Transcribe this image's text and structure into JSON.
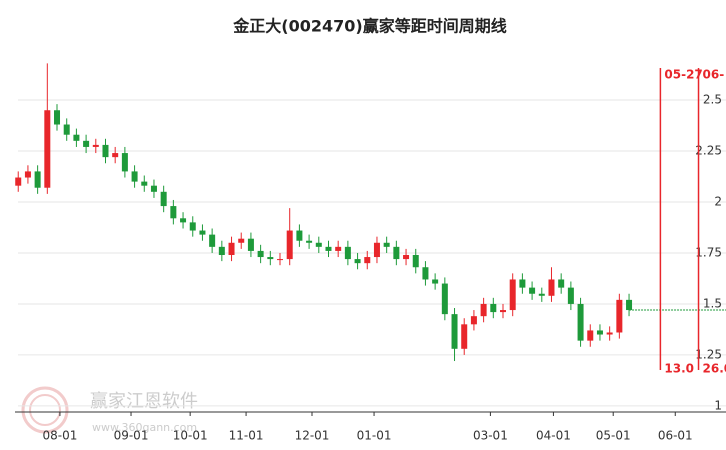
{
  "chart_data": {
    "type": "candlestick",
    "title": "金正大(002470)赢家等距时间周期线",
    "x": [
      0,
      3,
      6,
      9,
      12,
      15,
      18,
      21,
      24,
      27,
      30,
      33,
      36,
      39,
      42,
      45,
      48,
      51,
      54,
      57,
      60,
      63,
      66,
      69,
      72,
      75,
      78,
      81,
      84,
      87,
      90,
      93,
      96,
      99,
      102,
      105,
      108,
      111,
      114,
      117,
      120,
      123,
      126,
      129,
      132,
      135,
      138,
      141,
      144,
      147,
      150,
      153,
      156,
      159,
      162,
      165,
      168,
      171,
      174,
      177,
      180,
      183,
      186,
      189
    ],
    "open": [
      2.08,
      2.12,
      2.15,
      2.07,
      2.45,
      2.38,
      2.33,
      2.3,
      2.27,
      2.28,
      2.22,
      2.24,
      2.15,
      2.1,
      2.08,
      2.05,
      1.98,
      1.92,
      1.9,
      1.86,
      1.84,
      1.78,
      1.74,
      1.8,
      1.82,
      1.76,
      1.73,
      1.72,
      1.72,
      1.86,
      1.81,
      1.8,
      1.78,
      1.76,
      1.78,
      1.72,
      1.7,
      1.73,
      1.8,
      1.78,
      1.72,
      1.74,
      1.68,
      1.62,
      1.6,
      1.45,
      1.28,
      1.4,
      1.44,
      1.5,
      1.46,
      1.47,
      1.62,
      1.58,
      1.55,
      1.54,
      1.62,
      1.58,
      1.5,
      1.32,
      1.37,
      1.35,
      1.36,
      1.52
    ],
    "high": [
      2.15,
      2.18,
      2.18,
      2.68,
      2.48,
      2.41,
      2.36,
      2.33,
      2.31,
      2.31,
      2.27,
      2.27,
      2.18,
      2.13,
      2.11,
      2.08,
      2.01,
      1.95,
      1.93,
      1.89,
      1.87,
      1.81,
      1.83,
      1.85,
      1.85,
      1.79,
      1.76,
      1.75,
      1.97,
      1.89,
      1.84,
      1.83,
      1.81,
      1.81,
      1.81,
      1.75,
      1.76,
      1.83,
      1.83,
      1.81,
      1.77,
      1.77,
      1.71,
      1.65,
      1.63,
      1.48,
      1.43,
      1.47,
      1.53,
      1.53,
      1.5,
      1.65,
      1.65,
      1.61,
      1.58,
      1.68,
      1.65,
      1.61,
      1.53,
      1.4,
      1.4,
      1.39,
      1.55,
      1.55
    ],
    "low": [
      2.05,
      2.09,
      2.04,
      2.04,
      2.35,
      2.3,
      2.27,
      2.24,
      2.24,
      2.19,
      2.19,
      2.12,
      2.07,
      2.05,
      2.02,
      1.95,
      1.89,
      1.87,
      1.83,
      1.81,
      1.75,
      1.71,
      1.71,
      1.77,
      1.73,
      1.7,
      1.69,
      1.69,
      1.69,
      1.78,
      1.77,
      1.75,
      1.73,
      1.73,
      1.69,
      1.67,
      1.67,
      1.7,
      1.75,
      1.69,
      1.69,
      1.65,
      1.59,
      1.57,
      1.42,
      1.22,
      1.25,
      1.37,
      1.41,
      1.43,
      1.43,
      1.44,
      1.55,
      1.52,
      1.51,
      1.51,
      1.55,
      1.47,
      1.29,
      1.29,
      1.32,
      1.32,
      1.33,
      1.44
    ],
    "close": [
      2.12,
      2.15,
      2.07,
      2.45,
      2.38,
      2.33,
      2.3,
      2.27,
      2.28,
      2.22,
      2.24,
      2.15,
      2.1,
      2.08,
      2.05,
      1.98,
      1.92,
      1.9,
      1.86,
      1.84,
      1.78,
      1.74,
      1.8,
      1.82,
      1.76,
      1.73,
      1.72,
      1.72,
      1.86,
      1.81,
      1.8,
      1.78,
      1.76,
      1.78,
      1.72,
      1.7,
      1.73,
      1.8,
      1.78,
      1.72,
      1.74,
      1.68,
      1.62,
      1.6,
      1.45,
      1.28,
      1.4,
      1.44,
      1.5,
      1.46,
      1.47,
      1.62,
      1.58,
      1.55,
      1.54,
      1.62,
      1.58,
      1.5,
      1.32,
      1.37,
      1.35,
      1.36,
      1.52,
      1.47
    ],
    "up_color": "#e8262b",
    "down_color": "#1e9a3a",
    "marker_color": "#e8262b",
    "xlim": [
      -1,
      219
    ],
    "xticks": [
      {
        "value": 12.9,
        "label": "08-01"
      },
      {
        "value": 34.9,
        "label": "09-01"
      },
      {
        "value": 53.2,
        "label": "10-01"
      },
      {
        "value": 70.5,
        "label": "11-01"
      },
      {
        "value": 90.9,
        "label": "12-01"
      },
      {
        "value": 110.1,
        "label": "01-01"
      },
      {
        "value": 146.1,
        "label": "03-01"
      },
      {
        "value": 165.6,
        "label": "04-01"
      },
      {
        "value": 184.1,
        "label": "05-01"
      },
      {
        "value": 203.3,
        "label": "06-01"
      }
    ],
    "ylim": [
      0.97,
      2.77
    ],
    "yticks": [
      1,
      1.25,
      1.5,
      1.75,
      2,
      2.25,
      2.5
    ],
    "grid": true,
    "markers": [
      {
        "x": 198.7,
        "label": "05-27",
        "bottom_label": "13.0"
      },
      {
        "x": 210.5,
        "label": "06-",
        "bottom_label": "26.0"
      }
    ],
    "watermark": {
      "name": "赢家江恩软件",
      "url": "www.360gann.com"
    }
  }
}
